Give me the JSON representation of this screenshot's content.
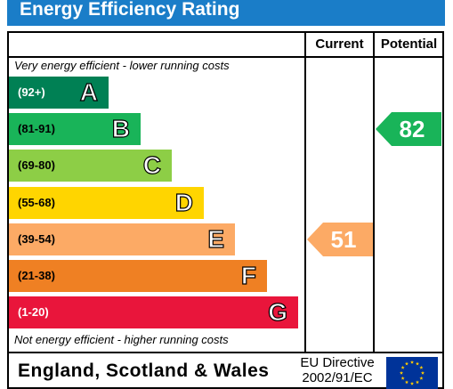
{
  "title": "Energy Efficiency Rating",
  "columns": {
    "current": "Current",
    "potential": "Potential"
  },
  "notes": {
    "top": "Very energy efficient - lower running costs",
    "bottom": "Not energy efficient - higher running costs"
  },
  "chart_data": {
    "type": "bar",
    "categories": [
      "A",
      "B",
      "C",
      "D",
      "E",
      "F",
      "G"
    ],
    "bands": [
      {
        "letter": "A",
        "range": "(92+)",
        "color": "#008054"
      },
      {
        "letter": "B",
        "range": "(81-91)",
        "color": "#19b459"
      },
      {
        "letter": "C",
        "range": "(69-80)",
        "color": "#8dce46"
      },
      {
        "letter": "D",
        "range": "(55-68)",
        "color": "#ffd500"
      },
      {
        "letter": "E",
        "range": "(39-54)",
        "color": "#fcaa65"
      },
      {
        "letter": "F",
        "range": "(21-38)",
        "color": "#ef8023"
      },
      {
        "letter": "G",
        "range": "(1-20)",
        "color": "#e9153b"
      }
    ],
    "current": {
      "value": 51,
      "band": "E",
      "color": "#fcaa65"
    },
    "potential": {
      "value": 82,
      "band": "B",
      "color": "#19b459"
    }
  },
  "footer": {
    "region": "England, Scotland & Wales",
    "directive_line1": "EU Directive",
    "directive_line2": "2002/91/EC",
    "flag_icon": "eu-flag-icon"
  }
}
